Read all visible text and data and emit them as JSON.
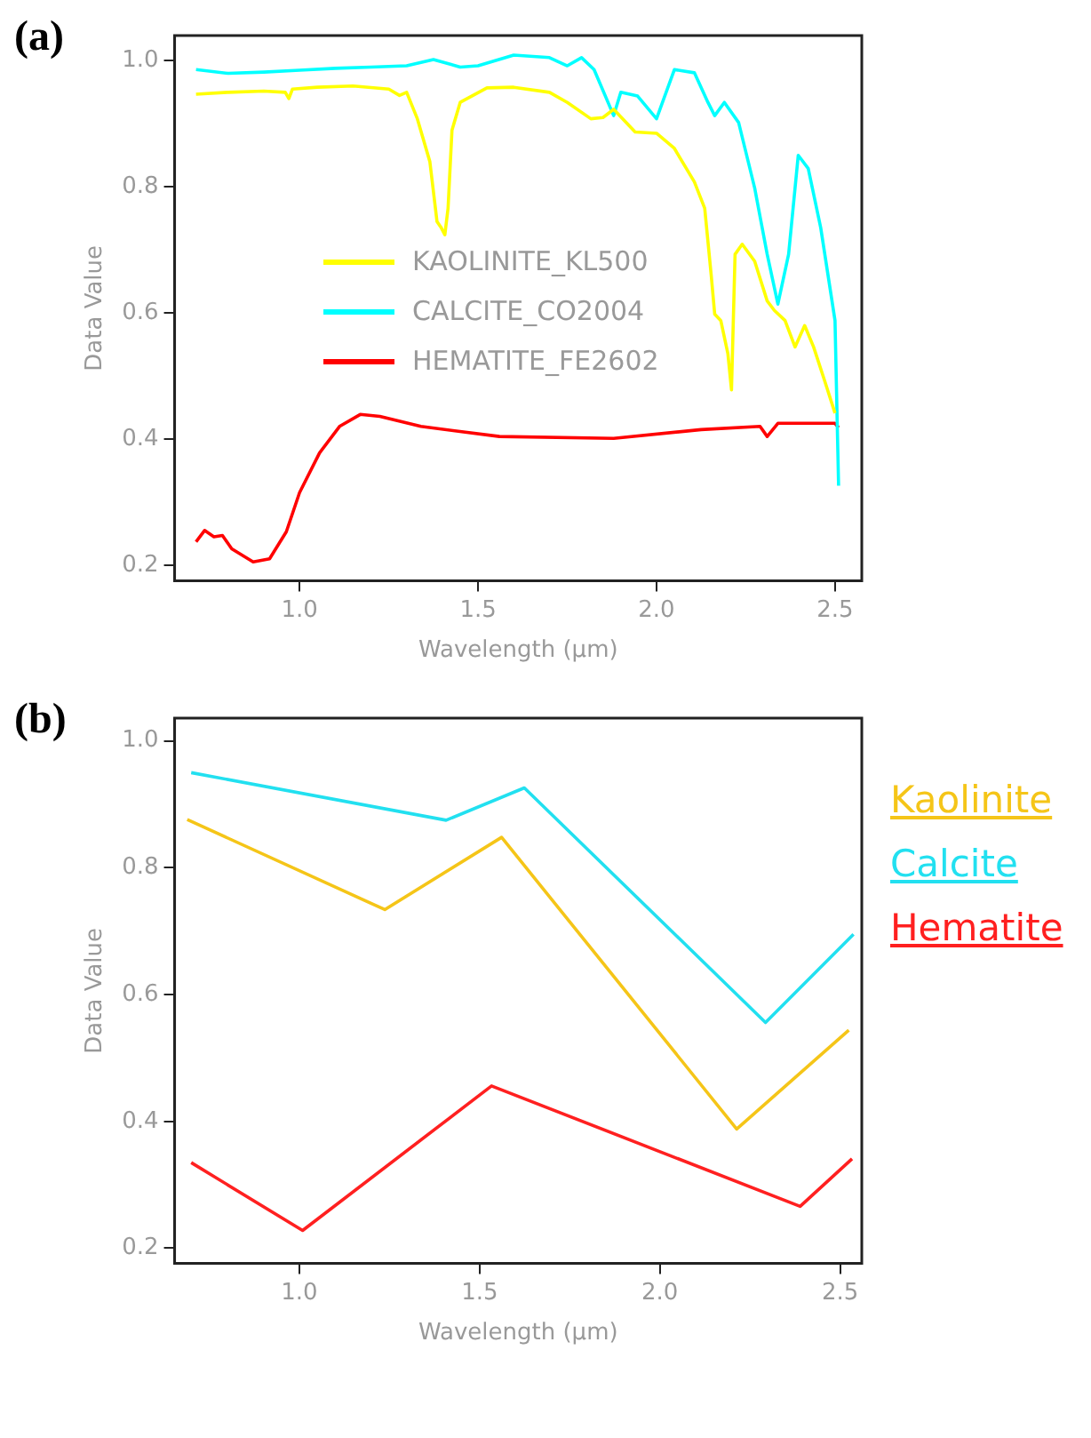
{
  "chart_data": [
    {
      "type": "line",
      "title": "(a)",
      "xlabel": "Wavelength (µm)",
      "ylabel": "Data Value",
      "xlim": [
        0.65,
        2.575
      ],
      "ylim": [
        0.175,
        1.04
      ],
      "xticks": [
        {
          "value": 1.0,
          "label": "1.0"
        },
        {
          "value": 1.5,
          "label": "1.5"
        },
        {
          "value": 2.0,
          "label": "2.0"
        },
        {
          "value": 2.5,
          "label": "2.5"
        }
      ],
      "yticks": [
        {
          "value": 0.2,
          "label": "0.2"
        },
        {
          "value": 0.4,
          "label": "0.4"
        },
        {
          "value": 0.6,
          "label": "0.6"
        },
        {
          "value": 0.8,
          "label": "0.8"
        },
        {
          "value": 1.0,
          "label": "1.0"
        }
      ],
      "grid": false,
      "marker": "none",
      "legend": "left",
      "series": [
        {
          "name": "KAOLINITE_KL500",
          "color": "#ffff00",
          "x": [
            0.71,
            0.8,
            0.9,
            0.96,
            0.97,
            0.98,
            1.05,
            1.15,
            1.25,
            1.28,
            1.3,
            1.33,
            1.365,
            1.385,
            1.397,
            1.407,
            1.416,
            1.427,
            1.45,
            1.525,
            1.6,
            1.7,
            1.75,
            1.816,
            1.85,
            1.88,
            1.94,
            2.0,
            2.05,
            2.106,
            2.135,
            2.153,
            2.163,
            2.18,
            2.2,
            2.21,
            2.22,
            2.24,
            2.275,
            2.31,
            2.33,
            2.36,
            2.388,
            2.415,
            2.44,
            2.47,
            2.5
          ],
          "values": [
            0.947,
            0.95,
            0.952,
            0.95,
            0.94,
            0.955,
            0.958,
            0.96,
            0.955,
            0.945,
            0.95,
            0.908,
            0.84,
            0.745,
            0.735,
            0.724,
            0.766,
            0.89,
            0.934,
            0.957,
            0.958,
            0.95,
            0.934,
            0.908,
            0.91,
            0.923,
            0.887,
            0.885,
            0.861,
            0.808,
            0.766,
            0.661,
            0.598,
            0.588,
            0.535,
            0.478,
            0.693,
            0.709,
            0.682,
            0.619,
            0.604,
            0.588,
            0.546,
            0.58,
            0.546,
            0.494,
            0.441
          ]
        },
        {
          "name": "CALCITE_CO2004",
          "color": "#00ffff",
          "x": [
            0.71,
            0.8,
            0.9,
            1.0,
            1.1,
            1.2,
            1.3,
            1.375,
            1.45,
            1.5,
            1.6,
            1.7,
            1.75,
            1.79,
            1.825,
            1.88,
            1.9,
            1.947,
            2.0,
            2.05,
            2.106,
            2.144,
            2.163,
            2.19,
            2.23,
            2.275,
            2.31,
            2.34,
            2.37,
            2.397,
            2.425,
            2.46,
            2.5,
            2.51
          ],
          "values": [
            0.986,
            0.98,
            0.982,
            0.985,
            0.988,
            0.99,
            0.992,
            1.002,
            0.99,
            0.992,
            1.009,
            1.005,
            0.992,
            1.005,
            0.986,
            0.913,
            0.95,
            0.944,
            0.908,
            0.986,
            0.981,
            0.934,
            0.913,
            0.934,
            0.902,
            0.798,
            0.693,
            0.614,
            0.693,
            0.85,
            0.829,
            0.735,
            0.588,
            0.326
          ]
        },
        {
          "name": "HEMATITE_FE2602",
          "color": "#ff0000",
          "x": [
            0.71,
            0.734,
            0.76,
            0.784,
            0.81,
            0.87,
            0.916,
            0.963,
            1.0,
            1.056,
            1.112,
            1.17,
            1.225,
            1.34,
            1.56,
            1.88,
            2.125,
            2.29,
            2.31,
            2.34,
            2.5,
            2.51
          ],
          "values": [
            0.237,
            0.255,
            0.245,
            0.247,
            0.226,
            0.205,
            0.21,
            0.253,
            0.315,
            0.378,
            0.42,
            0.439,
            0.436,
            0.42,
            0.404,
            0.401,
            0.415,
            0.42,
            0.404,
            0.425,
            0.425,
            0.418
          ]
        }
      ]
    },
    {
      "type": "line",
      "title": "(b)",
      "xlabel": "Wavelength (µm)",
      "ylabel": "Data Value",
      "xlim": [
        0.654,
        2.56
      ],
      "ylim": [
        0.176,
        1.036
      ],
      "xticks": [
        {
          "value": 1.0,
          "label": "1.0"
        },
        {
          "value": 1.5,
          "label": "1.5"
        },
        {
          "value": 2.0,
          "label": "2.0"
        },
        {
          "value": 2.5,
          "label": "2.5"
        }
      ],
      "yticks": [
        {
          "value": 0.2,
          "label": "0.2"
        },
        {
          "value": 0.4,
          "label": "0.4"
        },
        {
          "value": 0.6,
          "label": "0.6"
        },
        {
          "value": 0.8,
          "label": "0.8"
        },
        {
          "value": 1.0,
          "label": "1.0"
        }
      ],
      "grid": false,
      "marker": "none",
      "legend": "right",
      "series": [
        {
          "name": "Kaolinite",
          "color": "#f5c518",
          "x": [
            0.689,
            1.237,
            1.561,
            2.213,
            2.524
          ],
          "values": [
            0.876,
            0.734,
            0.848,
            0.388,
            0.544
          ]
        },
        {
          "name": "Calcite",
          "color": "#22e0f0",
          "x": [
            0.7,
            1.407,
            1.624,
            2.293,
            2.537
          ],
          "values": [
            0.95,
            0.875,
            0.926,
            0.556,
            0.695
          ]
        },
        {
          "name": "Hematite",
          "color": "#ff2020",
          "x": [
            0.7,
            1.009,
            1.533,
            2.389,
            2.533
          ],
          "values": [
            0.335,
            0.228,
            0.456,
            0.266,
            0.341
          ]
        }
      ]
    }
  ]
}
